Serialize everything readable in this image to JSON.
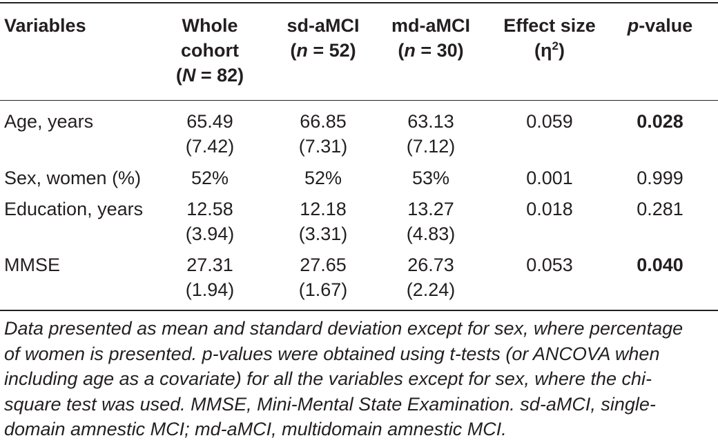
{
  "table": {
    "headers": [
      {
        "lines": [
          "Variables"
        ]
      },
      {
        "lines": [
          "Whole",
          "cohort"
        ],
        "n_label": "N",
        "n_rest": " = 82)"
      },
      {
        "lines": [
          "sd-aMCI"
        ],
        "n_label": "n",
        "n_rest": " = 52)"
      },
      {
        "lines": [
          "md-aMCI"
        ],
        "n_label": "n",
        "n_rest": " = 30)"
      },
      {
        "lines": [
          "Effect size"
        ],
        "eta": "(η",
        "eta_sup": "2",
        "eta_close": ")"
      },
      {
        "p_italic": "p",
        "p_rest": "-value"
      }
    ],
    "rows": [
      {
        "variable": "Age, years",
        "whole": [
          "65.49",
          "(7.42)"
        ],
        "sd": [
          "66.85",
          "(7.31)"
        ],
        "md": [
          "63.13",
          "(7.12)"
        ],
        "effect": "0.059",
        "p": "0.028",
        "p_bold": true
      },
      {
        "variable": "Sex, women (%)",
        "whole": [
          "52%"
        ],
        "sd": [
          "52%"
        ],
        "md": [
          "53%"
        ],
        "effect": "0.001",
        "p": "0.999",
        "p_bold": false
      },
      {
        "variable": "Education, years",
        "whole": [
          "12.58",
          "(3.94)"
        ],
        "sd": [
          "12.18",
          "(3.31)"
        ],
        "md": [
          "13.27",
          "(4.83)"
        ],
        "effect": "0.018",
        "p": "0.281",
        "p_bold": false
      },
      {
        "variable": "MMSE",
        "whole": [
          "27.31",
          "(1.94)"
        ],
        "sd": [
          "27.65",
          "(1.67)"
        ],
        "md": [
          "26.73",
          "(2.24)"
        ],
        "effect": "0.053",
        "p": "0.040",
        "p_bold": true
      }
    ]
  },
  "footnote": {
    "line1": "Data presented as mean and standard deviation except for sex, where percentage",
    "line2": "of women is presented. p-values were obtained using t-tests (or ANCOVA when",
    "line3": "including age as a covariate) for all the variables except for sex, where the chi-",
    "line4": "square test was used. MMSE, Mini-Mental State Examination. sd-aMCI, single-",
    "line5": "domain amnestic MCI; md-aMCI, multidomain amnestic MCI."
  }
}
